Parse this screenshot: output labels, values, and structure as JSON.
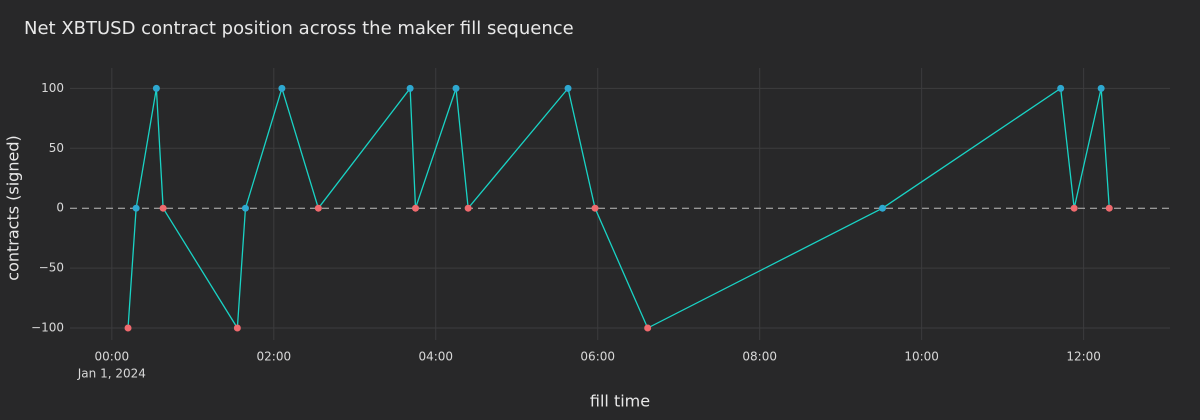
{
  "chart_data": {
    "type": "line",
    "title": "Net XBTUSD contract position across the maker fill sequence",
    "x_label": "fill time",
    "y_label": "contracts (signed)",
    "x": [
      "2024-01-01 00:12",
      "2024-01-01 00:18",
      "2024-01-01 00:33",
      "2024-01-01 00:38",
      "2024-01-01 01:33",
      "2024-01-01 01:39",
      "2024-01-01 02:06",
      "2024-01-01 02:33",
      "2024-01-01 03:41",
      "2024-01-01 03:45",
      "2024-01-01 04:15",
      "2024-01-01 04:24",
      "2024-01-01 05:38",
      "2024-01-01 05:58",
      "2024-01-01 06:37",
      "2024-01-01 09:31",
      "2024-01-01 11:43",
      "2024-01-01 11:53",
      "2024-01-01 12:13",
      "2024-01-01 12:19"
    ],
    "series": [
      {
        "color": "#19d3c5",
        "values": [
          -100,
          0,
          100,
          0,
          -100,
          0,
          100,
          0,
          100,
          0,
          100,
          0,
          100,
          0,
          -100,
          0,
          100,
          0,
          100,
          0
        ],
        "point_colors": [
          "#ef6a6e",
          "#2ea8d0",
          "#2ea8d0",
          "#ef6a6e",
          "#ef6a6e",
          "#2ea8d0",
          "#2ea8d0",
          "#ef6a6e",
          "#2ea8d0",
          "#ef6a6e",
          "#2ea8d0",
          "#ef6a6e",
          "#2ea8d0",
          "#ef6a6e",
          "#ef6a6e",
          "#2ea8d0",
          "#2ea8d0",
          "#ef6a6e",
          "#2ea8d0",
          "#ef6a6e"
        ]
      }
    ],
    "xlim": [
      "2023-12-31 23:29",
      "2024-01-01 13:04"
    ],
    "xticks": [
      {
        "value": "2024-01-01 00:00",
        "label": "00:00"
      },
      {
        "value": "2024-01-01 02:00",
        "label": "02:00"
      },
      {
        "value": "2024-01-01 04:00",
        "label": "04:00"
      },
      {
        "value": "2024-01-01 06:00",
        "label": "06:00"
      },
      {
        "value": "2024-01-01 08:00",
        "label": "08:00"
      },
      {
        "value": "2024-01-01 10:00",
        "label": "10:00"
      },
      {
        "value": "2024-01-01 12:00",
        "label": "12:00"
      }
    ],
    "x_date_label": "Jan 1, 2024",
    "ylim": [
      -110,
      117
    ],
    "yticks": [
      {
        "value": -100,
        "label": "−100"
      },
      {
        "value": -50,
        "label": "−50"
      },
      0,
      50,
      100
    ],
    "grid": true,
    "zeroline": "dashed"
  }
}
